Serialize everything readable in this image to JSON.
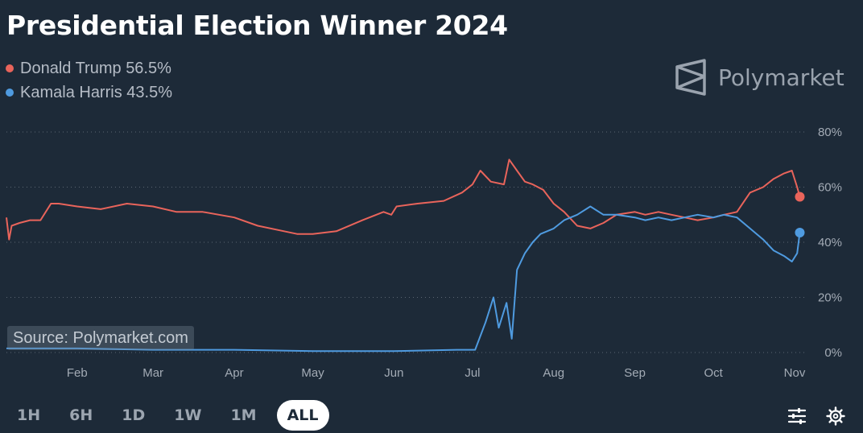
{
  "title": "Presidential Election Winner 2024",
  "brand": {
    "name": "Polymarket",
    "icon": "polymarket-logo-icon"
  },
  "source_label": "Source: Polymarket.com",
  "time_ranges": [
    {
      "label": "1H",
      "active": false
    },
    {
      "label": "6H",
      "active": false
    },
    {
      "label": "1D",
      "active": false
    },
    {
      "label": "1W",
      "active": false
    },
    {
      "label": "1M",
      "active": false
    },
    {
      "label": "ALL",
      "active": true
    }
  ],
  "tools": [
    {
      "icon": "sliders-icon"
    },
    {
      "icon": "gear-icon"
    }
  ],
  "colors": {
    "background": "#1d2a38",
    "trump": "#e9645b",
    "harris": "#4f9be0",
    "grid": "#5b6672",
    "axis_text": "#a3abb5"
  },
  "chart_data": {
    "type": "line",
    "title": "Presidential Election Winner 2024",
    "xlabel": "",
    "ylabel": "",
    "x_type": "date",
    "xlim": [
      "2024-01-05",
      "2024-11-05"
    ],
    "ylim": [
      0,
      80
    ],
    "y_ticks": [
      0,
      20,
      40,
      60,
      80
    ],
    "y_tick_format": "{v}%",
    "x_ticks": [
      {
        "date": "2024-02-01",
        "label": "Feb"
      },
      {
        "date": "2024-03-01",
        "label": "Mar"
      },
      {
        "date": "2024-04-01",
        "label": "Apr"
      },
      {
        "date": "2024-05-01",
        "label": "May"
      },
      {
        "date": "2024-06-01",
        "label": "Jun"
      },
      {
        "date": "2024-07-01",
        "label": "Jul"
      },
      {
        "date": "2024-08-01",
        "label": "Aug"
      },
      {
        "date": "2024-09-01",
        "label": "Sep"
      },
      {
        "date": "2024-10-01",
        "label": "Oct"
      },
      {
        "date": "2024-11-01",
        "label": "Nov"
      }
    ],
    "grid": true,
    "legend": "top-left",
    "series": [
      {
        "name": "Donald Trump",
        "last_label": "56.5%",
        "color": "#e9645b",
        "x": [
          "2024-01-05",
          "2024-01-06",
          "2024-01-07",
          "2024-01-10",
          "2024-01-14",
          "2024-01-18",
          "2024-01-22",
          "2024-01-25",
          "2024-02-01",
          "2024-02-10",
          "2024-02-20",
          "2024-03-01",
          "2024-03-10",
          "2024-03-20",
          "2024-04-01",
          "2024-04-10",
          "2024-04-20",
          "2024-04-25",
          "2024-05-01",
          "2024-05-10",
          "2024-05-20",
          "2024-05-28",
          "2024-05-31",
          "2024-06-02",
          "2024-06-10",
          "2024-06-20",
          "2024-06-27",
          "2024-07-01",
          "2024-07-04",
          "2024-07-08",
          "2024-07-13",
          "2024-07-15",
          "2024-07-18",
          "2024-07-21",
          "2024-07-24",
          "2024-07-28",
          "2024-08-01",
          "2024-08-05",
          "2024-08-10",
          "2024-08-15",
          "2024-08-20",
          "2024-08-25",
          "2024-09-01",
          "2024-09-05",
          "2024-09-10",
          "2024-09-15",
          "2024-09-20",
          "2024-09-25",
          "2024-10-01",
          "2024-10-05",
          "2024-10-10",
          "2024-10-15",
          "2024-10-20",
          "2024-10-24",
          "2024-10-28",
          "2024-10-31",
          "2024-11-02",
          "2024-11-03"
        ],
        "values": [
          49,
          41,
          46,
          47,
          48,
          48,
          54,
          54,
          53,
          52,
          54,
          53,
          51,
          51,
          49,
          46,
          44,
          43,
          43,
          44,
          48,
          51,
          50,
          53,
          54,
          55,
          58,
          61,
          66,
          62,
          61,
          70,
          66,
          62,
          61,
          59,
          54,
          51,
          46,
          45,
          47,
          50,
          51,
          50,
          51,
          50,
          49,
          48,
          49,
          50,
          51,
          58,
          60,
          63,
          65,
          66,
          60,
          56.5
        ]
      },
      {
        "name": "Kamala Harris",
        "last_label": "43.5%",
        "color": "#4f9be0",
        "x": [
          "2024-01-05",
          "2024-02-01",
          "2024-03-01",
          "2024-04-01",
          "2024-05-01",
          "2024-06-01",
          "2024-06-25",
          "2024-07-02",
          "2024-07-06",
          "2024-07-09",
          "2024-07-11",
          "2024-07-14",
          "2024-07-16",
          "2024-07-18",
          "2024-07-21",
          "2024-07-24",
          "2024-07-27",
          "2024-08-01",
          "2024-08-05",
          "2024-08-10",
          "2024-08-15",
          "2024-08-20",
          "2024-08-25",
          "2024-09-01",
          "2024-09-05",
          "2024-09-10",
          "2024-09-15",
          "2024-09-20",
          "2024-09-25",
          "2024-10-01",
          "2024-10-05",
          "2024-10-10",
          "2024-10-15",
          "2024-10-20",
          "2024-10-24",
          "2024-10-28",
          "2024-10-31",
          "2024-11-02",
          "2024-11-03"
        ],
        "values": [
          1.5,
          1.5,
          1,
          1,
          0.5,
          0.5,
          1,
          1,
          11,
          20,
          9,
          18,
          5,
          30,
          36,
          40,
          43,
          45,
          48,
          50,
          53,
          50,
          50,
          49,
          48,
          49,
          48,
          49,
          50,
          49,
          50,
          49,
          45,
          41,
          37,
          35,
          33,
          36,
          43.5
        ]
      }
    ]
  }
}
